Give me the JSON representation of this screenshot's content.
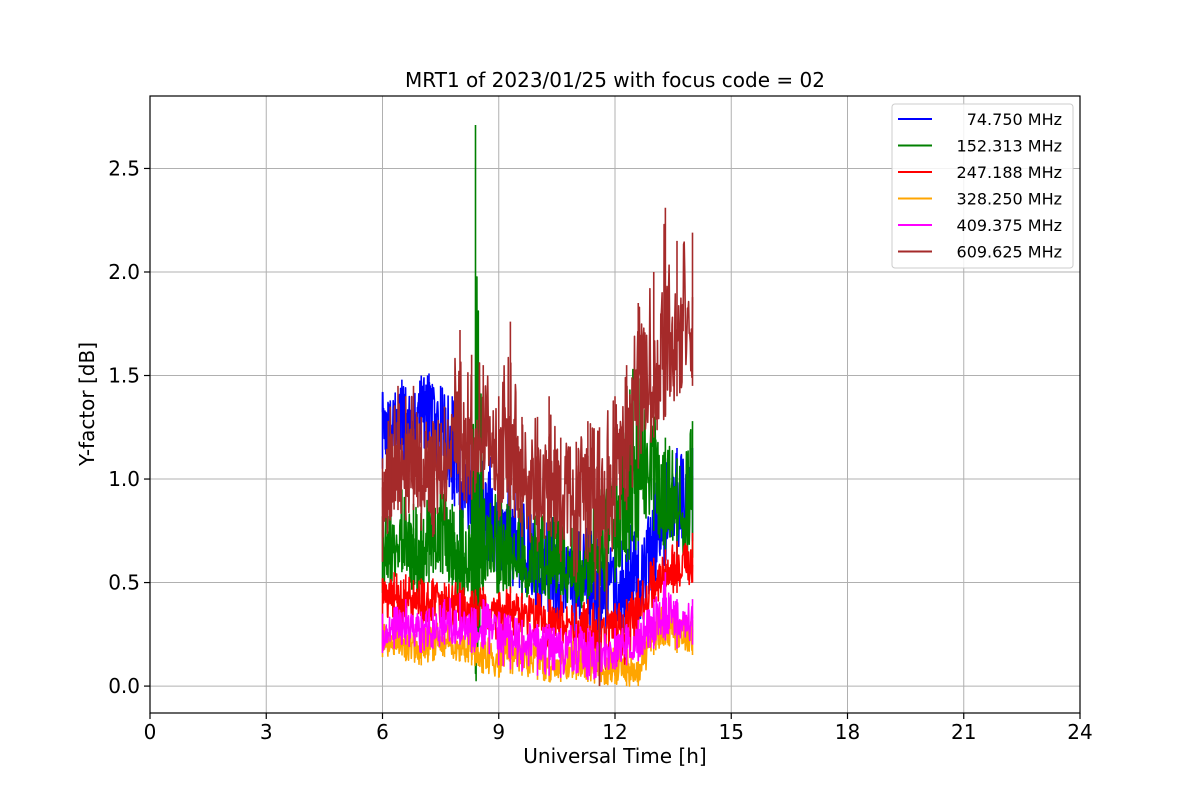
{
  "chart_data": {
    "type": "line",
    "title": "MRT1 of 2023/01/25 with focus code = 02",
    "xlabel": "Universal Time [h]",
    "ylabel": "Y-factor [dB]",
    "xlim": [
      0,
      24
    ],
    "ylim": [
      -0.13,
      2.85
    ],
    "xticks": [
      0,
      3,
      6,
      9,
      12,
      15,
      18,
      21,
      24
    ],
    "yticks": [
      0.0,
      0.5,
      1.0,
      1.5,
      2.0,
      2.5
    ],
    "xtick_labels": [
      "0",
      "3",
      "6",
      "9",
      "12",
      "15",
      "18",
      "21",
      "24"
    ],
    "ytick_labels": [
      "0.0",
      "0.5",
      "1.0",
      "1.5",
      "2.0",
      "2.5"
    ],
    "grid": true,
    "legend_position": "top-right",
    "series": [
      {
        "name": "74.750 MHz",
        "color": "#0000ff",
        "x": [
          6.0,
          6.2,
          6.5,
          6.8,
          7.0,
          7.2,
          7.5,
          7.8,
          8.0,
          8.3,
          8.6,
          9.0,
          9.3,
          9.6,
          10.0,
          10.3,
          10.6,
          11.0,
          11.3,
          11.6,
          12.0,
          12.3,
          12.6,
          13.0,
          13.3,
          13.6,
          14.0
        ],
        "y": [
          1.28,
          1.2,
          1.32,
          1.22,
          1.35,
          1.4,
          1.25,
          1.2,
          1.05,
          0.95,
          0.9,
          0.7,
          0.75,
          0.65,
          0.55,
          0.6,
          0.5,
          0.45,
          0.5,
          0.4,
          0.5,
          0.45,
          0.55,
          0.7,
          0.85,
          0.9,
          0.95
        ],
        "min": [
          1.05,
          1.05,
          1.1,
          1.0,
          1.1,
          1.15,
          1.0,
          0.9,
          0.7,
          0.6,
          0.55,
          0.45,
          0.5,
          0.4,
          0.35,
          0.35,
          0.3,
          0.25,
          0.3,
          0.2,
          0.25,
          0.25,
          0.3,
          0.45,
          0.55,
          0.6,
          0.7
        ],
        "max": [
          1.42,
          1.38,
          1.48,
          1.4,
          1.5,
          1.51,
          1.45,
          1.4,
          1.3,
          1.2,
          1.15,
          1.05,
          1.0,
          0.9,
          0.85,
          0.9,
          0.8,
          0.75,
          0.85,
          0.7,
          0.8,
          0.75,
          0.85,
          1.0,
          1.1,
          1.15,
          1.15
        ]
      },
      {
        "name": "152.313 MHz",
        "color": "#008000",
        "x": [
          6.0,
          6.2,
          6.5,
          6.8,
          7.0,
          7.2,
          7.5,
          7.8,
          8.0,
          8.3,
          8.4,
          8.6,
          9.0,
          9.3,
          9.6,
          10.0,
          10.3,
          10.6,
          11.0,
          11.3,
          11.6,
          12.0,
          12.3,
          12.6,
          13.0,
          13.3,
          13.6,
          14.0
        ],
        "y": [
          0.62,
          0.68,
          0.72,
          0.65,
          0.6,
          0.7,
          0.75,
          0.62,
          0.58,
          0.6,
          0.62,
          0.62,
          0.65,
          0.62,
          0.6,
          0.62,
          0.58,
          0.55,
          0.52,
          0.55,
          0.6,
          0.75,
          0.85,
          0.95,
          1.0,
          0.9,
          0.8,
          0.85
        ],
        "min": [
          0.45,
          0.5,
          0.55,
          0.45,
          0.42,
          0.5,
          0.55,
          0.42,
          0.4,
          0.42,
          0.45,
          0.45,
          0.45,
          0.45,
          0.42,
          0.45,
          0.4,
          0.38,
          0.35,
          0.38,
          0.4,
          0.5,
          0.6,
          0.7,
          0.75,
          0.65,
          0.6,
          0.62
        ],
        "max": [
          0.82,
          0.9,
          0.95,
          0.88,
          0.85,
          0.95,
          0.98,
          0.88,
          0.85,
          0.9,
          2.71,
          0.9,
          0.95,
          0.92,
          0.88,
          0.9,
          0.85,
          0.82,
          0.78,
          0.85,
          0.95,
          1.25,
          1.45,
          1.65,
          1.35,
          1.2,
          1.1,
          1.28
        ]
      },
      {
        "name": "247.188 MHz",
        "color": "#ff0000",
        "x": [
          6.0,
          6.3,
          6.6,
          7.0,
          7.3,
          7.6,
          8.0,
          8.3,
          8.6,
          9.0,
          9.3,
          9.6,
          10.0,
          10.3,
          10.6,
          11.0,
          11.3,
          11.6,
          12.0,
          12.3,
          12.6,
          13.0,
          13.3,
          13.6,
          14.0
        ],
        "y": [
          0.42,
          0.45,
          0.44,
          0.4,
          0.42,
          0.38,
          0.4,
          0.36,
          0.38,
          0.35,
          0.38,
          0.35,
          0.34,
          0.3,
          0.32,
          0.28,
          0.3,
          0.25,
          0.28,
          0.3,
          0.4,
          0.5,
          0.55,
          0.58,
          0.62
        ],
        "min": [
          0.3,
          0.32,
          0.3,
          0.28,
          0.3,
          0.26,
          0.28,
          0.24,
          0.26,
          0.22,
          0.25,
          0.22,
          0.2,
          0.18,
          0.2,
          0.15,
          0.12,
          0.05,
          0.05,
          0.08,
          0.25,
          0.38,
          0.42,
          0.45,
          0.5
        ],
        "max": [
          0.52,
          0.55,
          0.54,
          0.52,
          0.52,
          0.5,
          0.5,
          0.46,
          0.48,
          0.45,
          0.48,
          0.45,
          0.45,
          0.42,
          0.44,
          0.4,
          0.42,
          0.38,
          0.4,
          0.42,
          0.52,
          0.62,
          0.66,
          0.7,
          0.74
        ]
      },
      {
        "name": "328.250 MHz",
        "color": "#ffa500",
        "x": [
          6.0,
          6.3,
          6.6,
          7.0,
          7.3,
          7.6,
          8.0,
          8.3,
          8.6,
          9.0,
          9.3,
          9.6,
          10.0,
          10.3,
          10.6,
          11.0,
          11.3,
          11.6,
          12.0,
          12.3,
          12.6,
          13.0,
          13.3,
          13.6,
          14.0
        ],
        "y": [
          0.2,
          0.22,
          0.2,
          0.18,
          0.2,
          0.22,
          0.2,
          0.18,
          0.16,
          0.14,
          0.16,
          0.15,
          0.13,
          0.12,
          0.1,
          0.12,
          0.1,
          0.08,
          0.1,
          0.08,
          0.06,
          0.25,
          0.3,
          0.25,
          0.22
        ],
        "min": [
          0.14,
          0.15,
          0.12,
          0.1,
          0.12,
          0.14,
          0.12,
          0.1,
          0.06,
          0.04,
          0.06,
          0.05,
          0.03,
          0.02,
          0.02,
          0.03,
          0.02,
          0.0,
          0.01,
          0.0,
          0.0,
          0.15,
          0.2,
          0.16,
          0.15
        ],
        "max": [
          0.3,
          0.32,
          0.3,
          0.28,
          0.3,
          0.32,
          0.3,
          0.28,
          0.26,
          0.24,
          0.26,
          0.25,
          0.23,
          0.22,
          0.2,
          0.22,
          0.2,
          0.18,
          0.2,
          0.18,
          0.16,
          0.35,
          0.4,
          0.35,
          0.32
        ]
      },
      {
        "name": "409.375 MHz",
        "color": "#ff00ff",
        "x": [
          6.0,
          6.3,
          6.6,
          7.0,
          7.3,
          7.6,
          8.0,
          8.3,
          8.6,
          9.0,
          9.3,
          9.6,
          10.0,
          10.3,
          10.6,
          11.0,
          11.3,
          11.6,
          12.0,
          12.3,
          12.6,
          13.0,
          13.3,
          13.6,
          14.0
        ],
        "y": [
          0.25,
          0.28,
          0.3,
          0.26,
          0.28,
          0.3,
          0.3,
          0.28,
          0.3,
          0.25,
          0.24,
          0.22,
          0.2,
          0.2,
          0.18,
          0.2,
          0.18,
          0.16,
          0.18,
          0.2,
          0.22,
          0.3,
          0.38,
          0.3,
          0.32
        ],
        "min": [
          0.16,
          0.18,
          0.2,
          0.16,
          0.18,
          0.2,
          0.2,
          0.16,
          0.18,
          0.1,
          0.08,
          0.07,
          0.05,
          0.05,
          0.04,
          0.06,
          0.03,
          0.03,
          0.08,
          0.1,
          0.12,
          0.18,
          0.22,
          0.18,
          0.2
        ],
        "max": [
          0.35,
          0.38,
          0.42,
          0.36,
          0.38,
          0.42,
          0.45,
          0.38,
          0.42,
          0.36,
          0.34,
          0.32,
          0.3,
          0.3,
          0.28,
          0.3,
          0.28,
          0.26,
          0.28,
          0.3,
          0.32,
          0.42,
          0.55,
          0.42,
          0.42
        ]
      },
      {
        "name": "609.625 MHz",
        "color": "#a52a2a",
        "x": [
          6.0,
          6.2,
          6.4,
          6.6,
          6.8,
          7.0,
          7.3,
          7.6,
          8.0,
          8.3,
          8.6,
          9.0,
          9.3,
          9.6,
          10.0,
          10.3,
          10.6,
          11.0,
          11.3,
          11.6,
          12.0,
          12.3,
          12.6,
          13.0,
          13.3,
          13.6,
          14.0
        ],
        "y": [
          0.85,
          1.05,
          1.1,
          1.05,
          1.1,
          1.0,
          0.98,
          1.05,
          1.1,
          1.15,
          1.2,
          1.05,
          1.1,
          1.0,
          0.95,
          1.05,
          0.9,
          0.85,
          0.95,
          0.9,
          1.05,
          1.2,
          1.4,
          1.55,
          1.6,
          1.7,
          1.75
        ],
        "min": [
          0.6,
          0.8,
          0.85,
          0.8,
          0.85,
          0.75,
          0.72,
          0.8,
          0.85,
          0.9,
          0.95,
          0.8,
          0.85,
          0.72,
          0.65,
          0.75,
          0.6,
          0.5,
          0.6,
          0.0,
          0.72,
          0.85,
          1.05,
          1.2,
          1.3,
          1.4,
          1.45
        ],
        "max": [
          1.1,
          1.35,
          1.45,
          1.4,
          1.45,
          1.3,
          1.28,
          1.35,
          1.72,
          1.6,
          1.55,
          1.4,
          1.76,
          1.3,
          1.3,
          1.4,
          1.2,
          1.18,
          1.28,
          1.25,
          1.4,
          1.55,
          1.85,
          2.0,
          2.31,
          2.15,
          2.19
        ]
      }
    ]
  }
}
